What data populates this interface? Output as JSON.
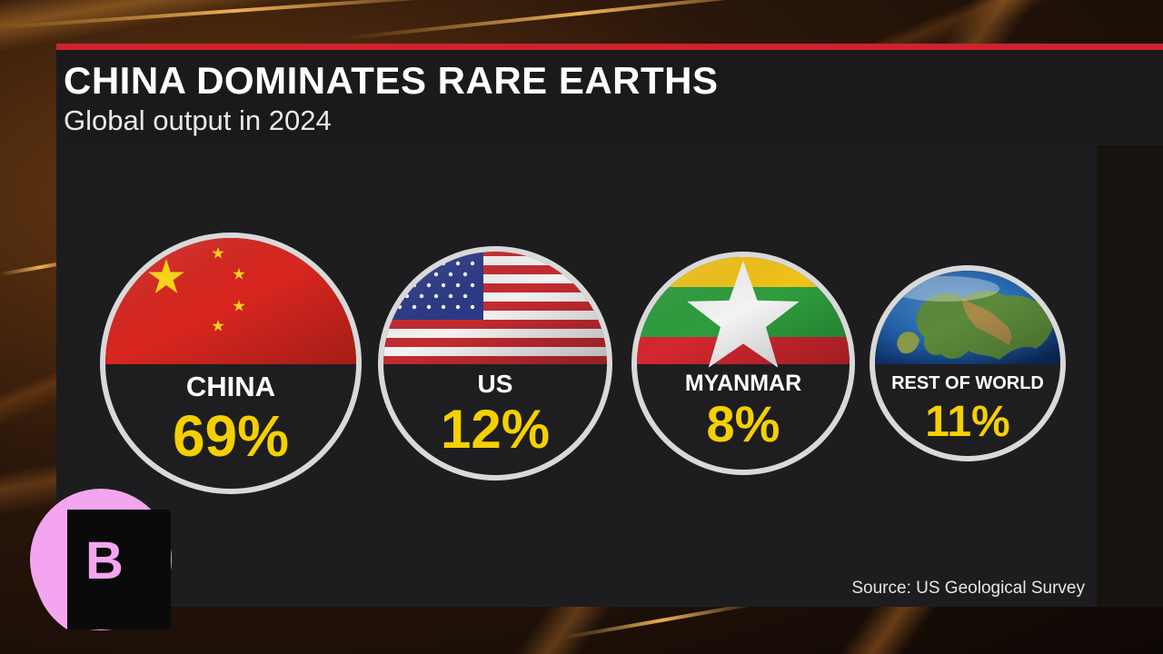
{
  "header": {
    "title": "CHINA DOMINATES RARE EARTHS",
    "subtitle": "Global output in 2024"
  },
  "source": "Source: US Geological Survey",
  "logo": {
    "letter": "B",
    "icon": "bloomberg-b-logo-icon"
  },
  "colors": {
    "accent_red": "#d0222e",
    "value_yellow": "#f5d000",
    "panel": "#1c1c1e",
    "logo_pink": "#f3a6ef"
  },
  "chart_data": {
    "type": "bubble",
    "title": "CHINA DOMINATES RARE EARTHS",
    "subtitle": "Global output in 2024",
    "unit": "%",
    "categories": [
      "CHINA",
      "US",
      "MYANMAR",
      "REST OF WORLD"
    ],
    "values": [
      69,
      12,
      8,
      11
    ],
    "labels": [
      "69%",
      "12%",
      "8%",
      "11%"
    ],
    "icons": [
      "china-flag-icon",
      "us-flag-icon",
      "myanmar-flag-icon",
      "globe-icon"
    ]
  }
}
